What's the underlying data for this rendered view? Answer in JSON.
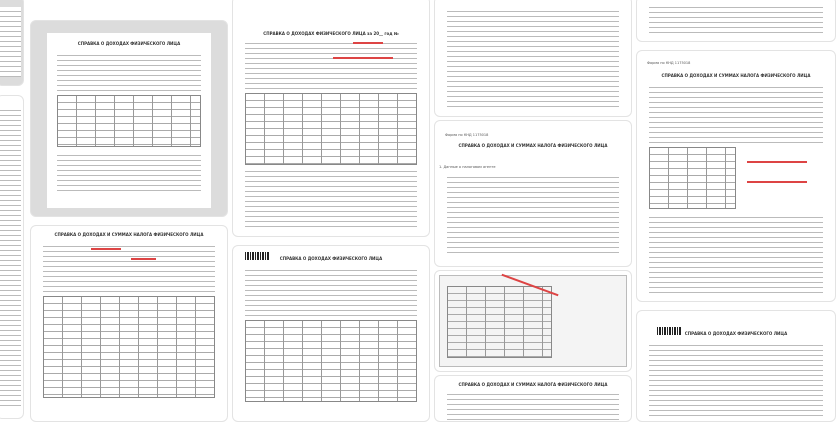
{
  "results": [
    {
      "id": "a"
    },
    {
      "id": "b",
      "title": "СПРАВКА О ДОХОДАХ ФИЗИЧЕСКОГО ЛИЦА"
    },
    {
      "id": "c"
    },
    {
      "id": "d",
      "title": "СПРАВКА О ДОХОДАХ И СУММАХ НАЛОГА ФИЗИЧЕСКОГО ЛИЦА"
    },
    {
      "id": "e",
      "title": "СПРАВКА О ДОХОДАХ ФИЗИЧЕСКОГО ЛИЦА за 20__ год №"
    },
    {
      "id": "f",
      "title": "СПРАВКА О ДОХОДАХ ФИЗИЧЕСКОГО ЛИЦА"
    },
    {
      "id": "g"
    },
    {
      "id": "h",
      "title": "СПРАВКА О ДОХОДАХ И СУММАХ НАЛОГА ФИЗИЧЕСКОГО ЛИЦА",
      "code": "Форма по КНД 1175018",
      "section": "1. Данные о налоговом агенте"
    },
    {
      "id": "i"
    },
    {
      "id": "j",
      "title": "СПРАВКА О ДОХОДАХ И СУММАХ НАЛОГА ФИЗИЧЕСКОГО ЛИЦА"
    },
    {
      "id": "k"
    },
    {
      "id": "l",
      "title": "СПРАВКА О ДОХОДАХ И СУММАХ НАЛОГА ФИЗИЧЕСКОГО ЛИЦА",
      "code": "Форма по КНД 1175018"
    },
    {
      "id": "m",
      "title": "СПРАВКА О ДОХОДАХ ФИЗИЧЕСКОГО ЛИЦА"
    }
  ],
  "colors": {
    "annotation": "#d44444",
    "background": "#ffffff"
  }
}
